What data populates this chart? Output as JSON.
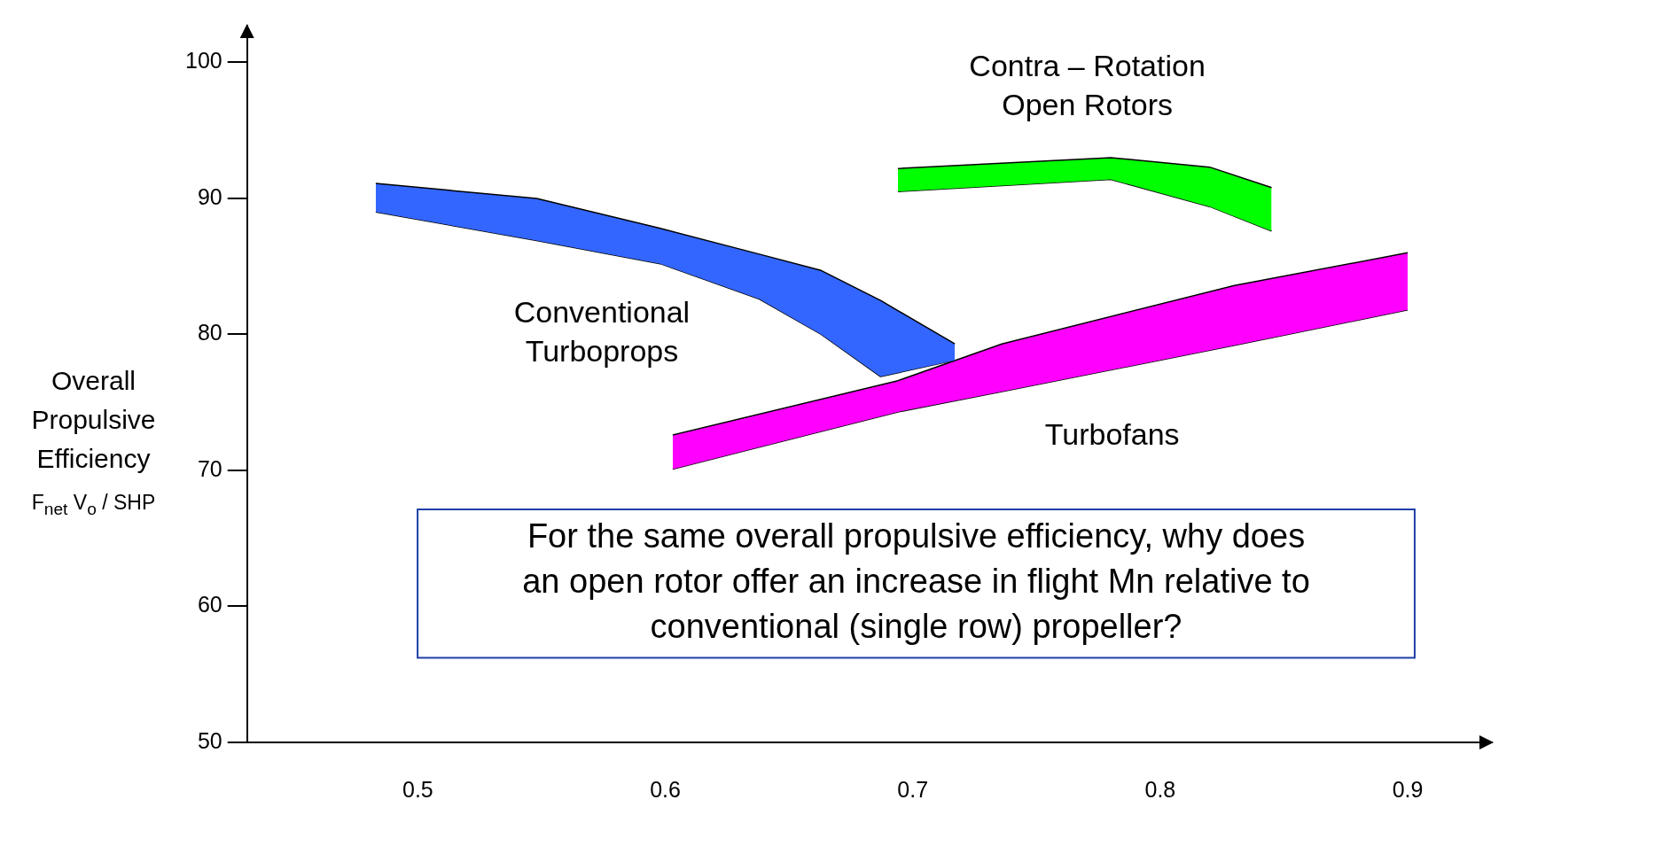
{
  "chart_data": {
    "type": "area",
    "ylabel": "Overall Propulsive Efficiency\nF$_{net}$ V$_{o}$ / SHP",
    "xlim": [
      0.431,
      0.934
    ],
    "ylim": [
      50,
      102.7
    ],
    "xticks": [
      0.5,
      0.6,
      0.7,
      0.8,
      0.9
    ],
    "yticks": [
      50,
      60,
      70,
      80,
      90,
      100
    ],
    "series": [
      {
        "type": "area",
        "color": "#3366ff",
        "x": [
          0.483,
          0.548,
          0.598,
          0.638,
          0.663,
          0.687,
          0.717
        ],
        "values": [
          91.1,
          90.0,
          87.8,
          85.9,
          84.7,
          82.5,
          79.3
        ]
      },
      {
        "type": "line",
        "color": "#000000",
        "x": [
          0.483,
          0.548,
          0.598,
          0.638,
          0.663,
          0.687,
          0.717
        ],
        "values": [
          89.0,
          86.9,
          85.2,
          82.6,
          80.0,
          76.9,
          78.1
        ]
      },
      {
        "type": "area",
        "color": "#00ff00",
        "x": [
          0.694,
          0.78,
          0.82,
          0.845
        ],
        "values": [
          92.2,
          93.0,
          92.3,
          90.8
        ]
      },
      {
        "type": "line",
        "color": "#000000",
        "x": [
          0.694,
          0.78,
          0.82,
          0.845
        ],
        "values": [
          90.5,
          91.4,
          89.4,
          87.6
        ]
      },
      {
        "type": "area",
        "color": "#ff00ff",
        "x": [
          0.603,
          0.694,
          0.736,
          0.83,
          0.9
        ],
        "values": [
          72.6,
          76.6,
          79.3,
          83.6,
          86.0
        ]
      },
      {
        "type": "line",
        "color": "#000000",
        "x": [
          0.603,
          0.694,
          0.736,
          0.83,
          0.9
        ],
        "values": [
          70.1,
          74.3,
          75.8,
          79.2,
          81.8
        ]
      }
    ],
    "annotations": [
      "Contra – Rotation\nOpen Rotors",
      "Conventional\nTurboprops",
      "Turbofans",
      "For the same overall propulsive efficiency, why does\nan open rotor offer an increase in flight Mn relative to\nconventional (single row) propeller?"
    ]
  }
}
